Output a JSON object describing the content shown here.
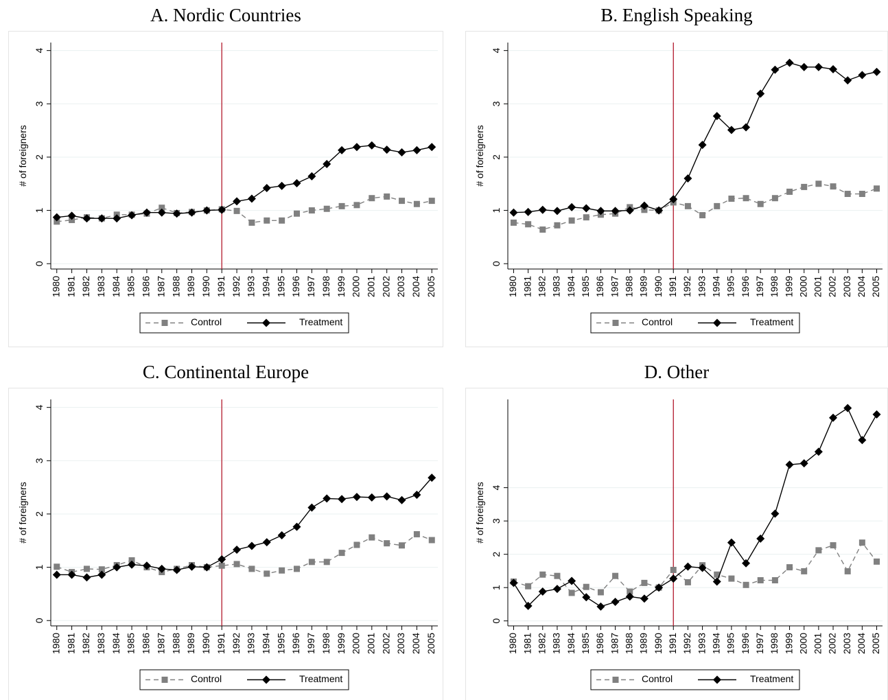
{
  "chart_data": [
    {
      "type": "line",
      "title": "A. Nordic Countries",
      "ylabel": "# of foreigners",
      "x": [
        1980,
        1981,
        1982,
        1983,
        1984,
        1985,
        1986,
        1987,
        1988,
        1989,
        1990,
        1991,
        1992,
        1993,
        1994,
        1995,
        1996,
        1997,
        1998,
        1999,
        2000,
        2001,
        2002,
        2003,
        2004,
        2005
      ],
      "xlim": [
        1979.6,
        2005.4
      ],
      "xticks": [
        1980,
        1981,
        1982,
        1983,
        1984,
        1985,
        1986,
        1987,
        1988,
        1989,
        1990,
        1991,
        1992,
        1993,
        1994,
        1995,
        1996,
        1997,
        1998,
        1999,
        2000,
        2001,
        2002,
        2003,
        2004,
        2005
      ],
      "ylim": [
        -0.1,
        4.15
      ],
      "yticks": [
        0,
        1,
        2,
        3,
        4
      ],
      "grid": true,
      "vline": 1991,
      "vline_color": "#b2182b",
      "legend": "bottom",
      "series": [
        {
          "name": "Control",
          "color": "#808080",
          "dash": true,
          "marker": "square",
          "values": [
            0.79,
            0.82,
            0.87,
            0.85,
            0.92,
            0.92,
            0.94,
            1.05,
            0.95,
            0.97,
            1.0,
            1.02,
            0.99,
            0.77,
            0.81,
            0.81,
            0.94,
            1.0,
            1.03,
            1.08,
            1.1,
            1.23,
            1.26,
            1.18,
            1.12,
            1.18
          ]
        },
        {
          "name": "Treatment",
          "color": "#000000",
          "dash": false,
          "marker": "diamond",
          "values": [
            0.87,
            0.9,
            0.85,
            0.85,
            0.85,
            0.91,
            0.96,
            0.96,
            0.94,
            0.96,
            1.0,
            1.01,
            1.17,
            1.22,
            1.42,
            1.46,
            1.51,
            1.64,
            1.87,
            2.13,
            2.19,
            2.22,
            2.14,
            2.09,
            2.13,
            2.19
          ]
        }
      ]
    },
    {
      "type": "line",
      "title": "B. English Speaking",
      "ylabel": "# of foreigners",
      "x": [
        1980,
        1981,
        1982,
        1983,
        1984,
        1985,
        1986,
        1987,
        1988,
        1989,
        1990,
        1991,
        1992,
        1993,
        1994,
        1995,
        1996,
        1997,
        1998,
        1999,
        2000,
        2001,
        2002,
        2003,
        2004,
        2005
      ],
      "xlim": [
        1979.6,
        2005.4
      ],
      "xticks": [
        1980,
        1981,
        1982,
        1983,
        1984,
        1985,
        1986,
        1987,
        1988,
        1989,
        1990,
        1991,
        1992,
        1993,
        1994,
        1995,
        1996,
        1997,
        1998,
        1999,
        2000,
        2001,
        2002,
        2003,
        2004,
        2005
      ],
      "ylim": [
        -0.1,
        4.15
      ],
      "yticks": [
        0,
        1,
        2,
        3,
        4
      ],
      "grid": true,
      "vline": 1991,
      "vline_color": "#b2182b",
      "legend": "bottom",
      "series": [
        {
          "name": "Control",
          "color": "#808080",
          "dash": true,
          "marker": "square",
          "values": [
            0.77,
            0.74,
            0.64,
            0.72,
            0.81,
            0.87,
            0.92,
            0.94,
            1.06,
            1.01,
            1.0,
            1.15,
            1.08,
            0.91,
            1.08,
            1.22,
            1.23,
            1.12,
            1.23,
            1.35,
            1.44,
            1.5,
            1.45,
            1.31,
            1.31,
            1.41
          ]
        },
        {
          "name": "Treatment",
          "color": "#000000",
          "dash": false,
          "marker": "diamond",
          "values": [
            0.96,
            0.97,
            1.01,
            0.99,
            1.06,
            1.04,
            0.99,
            0.99,
            1.0,
            1.09,
            1.0,
            1.21,
            1.6,
            2.23,
            2.77,
            2.51,
            2.56,
            3.19,
            3.64,
            3.77,
            3.69,
            3.69,
            3.65,
            3.44,
            3.54,
            3.6
          ]
        }
      ]
    },
    {
      "type": "line",
      "title": "C. Continental Europe",
      "ylabel": "# of foreigners",
      "x": [
        1980,
        1981,
        1982,
        1983,
        1984,
        1985,
        1986,
        1987,
        1988,
        1989,
        1990,
        1991,
        1992,
        1993,
        1994,
        1995,
        1996,
        1997,
        1998,
        1999,
        2000,
        2001,
        2002,
        2003,
        2004,
        2005
      ],
      "xlim": [
        1979.6,
        2005.4
      ],
      "xticks": [
        1980,
        1981,
        1982,
        1983,
        1984,
        1985,
        1986,
        1987,
        1988,
        1989,
        1990,
        1991,
        1992,
        1993,
        1994,
        1995,
        1996,
        1997,
        1998,
        1999,
        2000,
        2001,
        2002,
        2003,
        2004,
        2005
      ],
      "ylim": [
        -0.1,
        4.15
      ],
      "yticks": [
        0,
        1,
        2,
        3,
        4
      ],
      "grid": true,
      "vline": 1991,
      "vline_color": "#b2182b",
      "legend": "bottom",
      "series": [
        {
          "name": "Control",
          "color": "#808080",
          "dash": true,
          "marker": "square",
          "values": [
            1.01,
            0.91,
            0.97,
            0.96,
            1.04,
            1.13,
            1.0,
            0.91,
            0.97,
            1.04,
            1.0,
            1.03,
            1.06,
            0.97,
            0.88,
            0.94,
            0.97,
            1.1,
            1.1,
            1.27,
            1.42,
            1.56,
            1.45,
            1.41,
            1.62,
            1.51
          ]
        },
        {
          "name": "Treatment",
          "color": "#000000",
          "dash": false,
          "marker": "diamond",
          "values": [
            0.86,
            0.86,
            0.81,
            0.86,
            1.0,
            1.05,
            1.03,
            0.97,
            0.95,
            1.01,
            1.0,
            1.15,
            1.33,
            1.4,
            1.47,
            1.6,
            1.76,
            2.12,
            2.29,
            2.28,
            2.32,
            2.31,
            2.33,
            2.26,
            2.36,
            2.68
          ]
        }
      ]
    },
    {
      "type": "line",
      "title": "D. Other",
      "ylabel": "# of foreigners",
      "x": [
        1980,
        1981,
        1982,
        1983,
        1984,
        1985,
        1986,
        1987,
        1988,
        1989,
        1990,
        1991,
        1992,
        1993,
        1994,
        1995,
        1996,
        1997,
        1998,
        1999,
        2000,
        2001,
        2002,
        2003,
        2004,
        2005
      ],
      "xlim": [
        1979.6,
        2005.4
      ],
      "xticks": [
        1980,
        1981,
        1982,
        1983,
        1984,
        1985,
        1986,
        1987,
        1988,
        1989,
        1990,
        1991,
        1992,
        1993,
        1994,
        1995,
        1996,
        1997,
        1998,
        1999,
        2000,
        2001,
        2002,
        2003,
        2004,
        2005
      ],
      "ylim": [
        -0.15,
        6.65
      ],
      "yticks": [
        0,
        1,
        2,
        3,
        4
      ],
      "grid": true,
      "vline": 1991,
      "vline_color": "#b2182b",
      "legend": "bottom",
      "series": [
        {
          "name": "Control",
          "color": "#808080",
          "dash": true,
          "marker": "square",
          "values": [
            1.18,
            1.04,
            1.39,
            1.35,
            0.84,
            1.02,
            0.86,
            1.35,
            0.88,
            1.14,
            1.0,
            1.53,
            1.16,
            1.67,
            1.39,
            1.27,
            1.08,
            1.22,
            1.22,
            1.61,
            1.49,
            2.12,
            2.27,
            1.49,
            2.35,
            1.78
          ]
        },
        {
          "name": "Treatment",
          "color": "#000000",
          "dash": false,
          "marker": "diamond",
          "values": [
            1.14,
            0.45,
            0.88,
            0.96,
            1.2,
            0.71,
            0.43,
            0.57,
            0.73,
            0.67,
            1.0,
            1.27,
            1.63,
            1.59,
            1.18,
            2.35,
            1.73,
            2.47,
            3.22,
            4.69,
            4.73,
            5.08,
            6.1,
            6.39,
            5.43,
            6.2
          ]
        }
      ]
    }
  ]
}
